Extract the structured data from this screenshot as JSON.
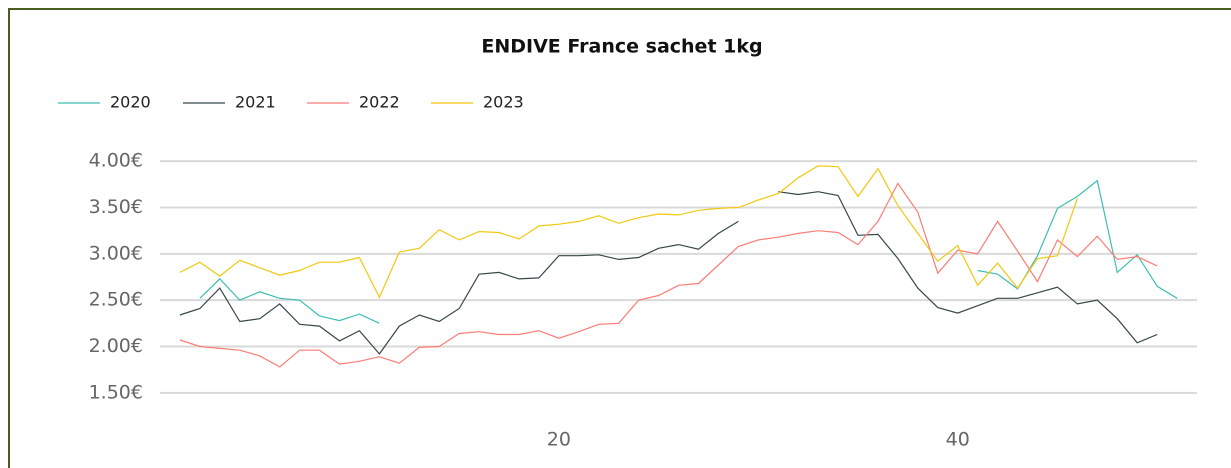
{
  "chart_data": {
    "type": "line",
    "title": "ENDIVE France sachet 1kg",
    "x": [
      1,
      2,
      3,
      4,
      5,
      6,
      7,
      8,
      9,
      10,
      11,
      12,
      13,
      14,
      15,
      16,
      17,
      18,
      19,
      20,
      21,
      22,
      23,
      24,
      25,
      26,
      27,
      28,
      29,
      30,
      31,
      32,
      33,
      34,
      35,
      36,
      37,
      38,
      39,
      40,
      41,
      42,
      43,
      44,
      45,
      46,
      47,
      48,
      49,
      50,
      51,
      52
    ],
    "xlim": [
      0,
      53
    ],
    "xticks": [
      20,
      40
    ],
    "ylim": [
      1.25,
      4.25
    ],
    "yticks": [
      {
        "value": 1.5,
        "label": "1.50€"
      },
      {
        "value": 2.0,
        "label": "2.00€"
      },
      {
        "value": 2.5,
        "label": "2.50€"
      },
      {
        "value": 3.0,
        "label": "3.00€"
      },
      {
        "value": 3.5,
        "label": "3.50€"
      },
      {
        "value": 4.0,
        "label": "4.00€"
      }
    ],
    "grid": true,
    "legend": "top-left",
    "series": [
      {
        "name": "2020",
        "color": "#3cbfb4",
        "values": [
          null,
          2.52,
          2.73,
          2.5,
          2.59,
          2.52,
          2.5,
          2.33,
          2.28,
          2.35,
          2.25,
          null,
          null,
          null,
          null,
          null,
          null,
          null,
          null,
          null,
          null,
          null,
          null,
          null,
          null,
          null,
          null,
          null,
          null,
          null,
          null,
          null,
          null,
          null,
          null,
          null,
          null,
          null,
          null,
          null,
          2.82,
          2.78,
          2.62,
          2.98,
          3.49,
          3.62,
          3.79,
          2.8,
          2.99,
          2.65,
          2.52,
          null
        ]
      },
      {
        "name": "2021",
        "color": "#374649",
        "values": [
          2.34,
          2.41,
          2.63,
          2.27,
          2.3,
          2.46,
          2.24,
          2.22,
          2.06,
          2.17,
          1.92,
          2.22,
          2.34,
          2.27,
          2.41,
          2.78,
          2.8,
          2.73,
          2.74,
          2.98,
          2.98,
          2.99,
          2.94,
          2.96,
          3.06,
          3.1,
          3.05,
          3.22,
          3.35,
          null,
          3.67,
          3.64,
          3.67,
          3.63,
          3.2,
          3.21,
          2.95,
          2.63,
          2.42,
          2.36,
          2.44,
          2.52,
          2.52,
          2.58,
          2.64,
          2.46,
          2.5,
          2.3,
          2.04,
          2.13,
          null,
          null
        ]
      },
      {
        "name": "2022",
        "color": "#fd7c75",
        "values": [
          2.07,
          2.0,
          1.98,
          1.96,
          1.9,
          1.78,
          1.96,
          1.96,
          1.81,
          1.84,
          1.89,
          1.82,
          1.99,
          2.0,
          2.14,
          2.16,
          2.13,
          2.13,
          2.17,
          2.09,
          2.16,
          2.24,
          2.25,
          2.5,
          2.55,
          2.66,
          2.68,
          2.88,
          3.08,
          3.15,
          3.18,
          3.22,
          3.25,
          3.23,
          3.1,
          3.35,
          3.76,
          3.45,
          2.79,
          3.04,
          3.0,
          3.35,
          3.03,
          2.7,
          3.15,
          2.97,
          3.19,
          2.94,
          2.97,
          2.87,
          null,
          null
        ]
      },
      {
        "name": "2023",
        "color": "#f2c80f",
        "values": [
          2.8,
          2.91,
          2.76,
          2.93,
          2.85,
          2.77,
          2.82,
          2.91,
          2.91,
          2.96,
          2.53,
          3.02,
          3.06,
          3.26,
          3.15,
          3.24,
          3.23,
          3.16,
          3.3,
          3.32,
          3.35,
          3.41,
          3.33,
          3.39,
          3.43,
          3.42,
          3.47,
          3.49,
          3.5,
          3.58,
          3.65,
          3.82,
          3.95,
          3.94,
          3.62,
          3.92,
          3.52,
          3.22,
          2.92,
          3.09,
          2.66,
          2.9,
          2.63,
          2.95,
          2.98,
          3.6,
          null,
          null,
          null,
          null,
          null,
          null
        ]
      }
    ]
  }
}
